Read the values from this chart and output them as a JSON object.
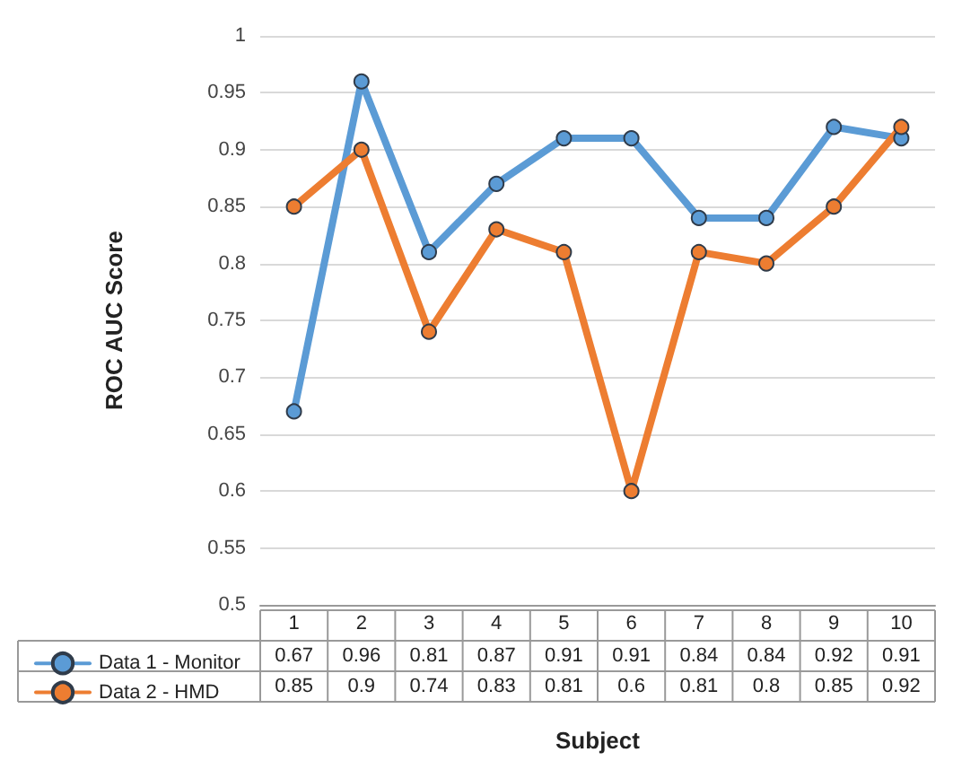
{
  "chart_data": {
    "type": "line",
    "xlabel": "Subject",
    "ylabel": "ROC AUC Score",
    "categories": [
      "1",
      "2",
      "3",
      "4",
      "5",
      "6",
      "7",
      "8",
      "9",
      "10"
    ],
    "series": [
      {
        "name": "Data 1 - Monitor",
        "color": "#5b9bd5",
        "values": [
          0.67,
          0.96,
          0.81,
          0.87,
          0.91,
          0.91,
          0.84,
          0.84,
          0.92,
          0.91
        ]
      },
      {
        "name": "Data 2 - HMD",
        "color": "#ed7d31",
        "values": [
          0.85,
          0.9,
          0.74,
          0.83,
          0.81,
          0.6,
          0.81,
          0.8,
          0.85,
          0.92
        ]
      }
    ],
    "ylim": [
      0.5,
      1
    ],
    "yticks": [
      0.5,
      0.55,
      0.6,
      0.65,
      0.7,
      0.75,
      0.8,
      0.85,
      0.9,
      0.95,
      1
    ],
    "grid": "y",
    "marker": "circle",
    "line_style": "solid",
    "legend": "bottom left",
    "data_labels": true
  }
}
